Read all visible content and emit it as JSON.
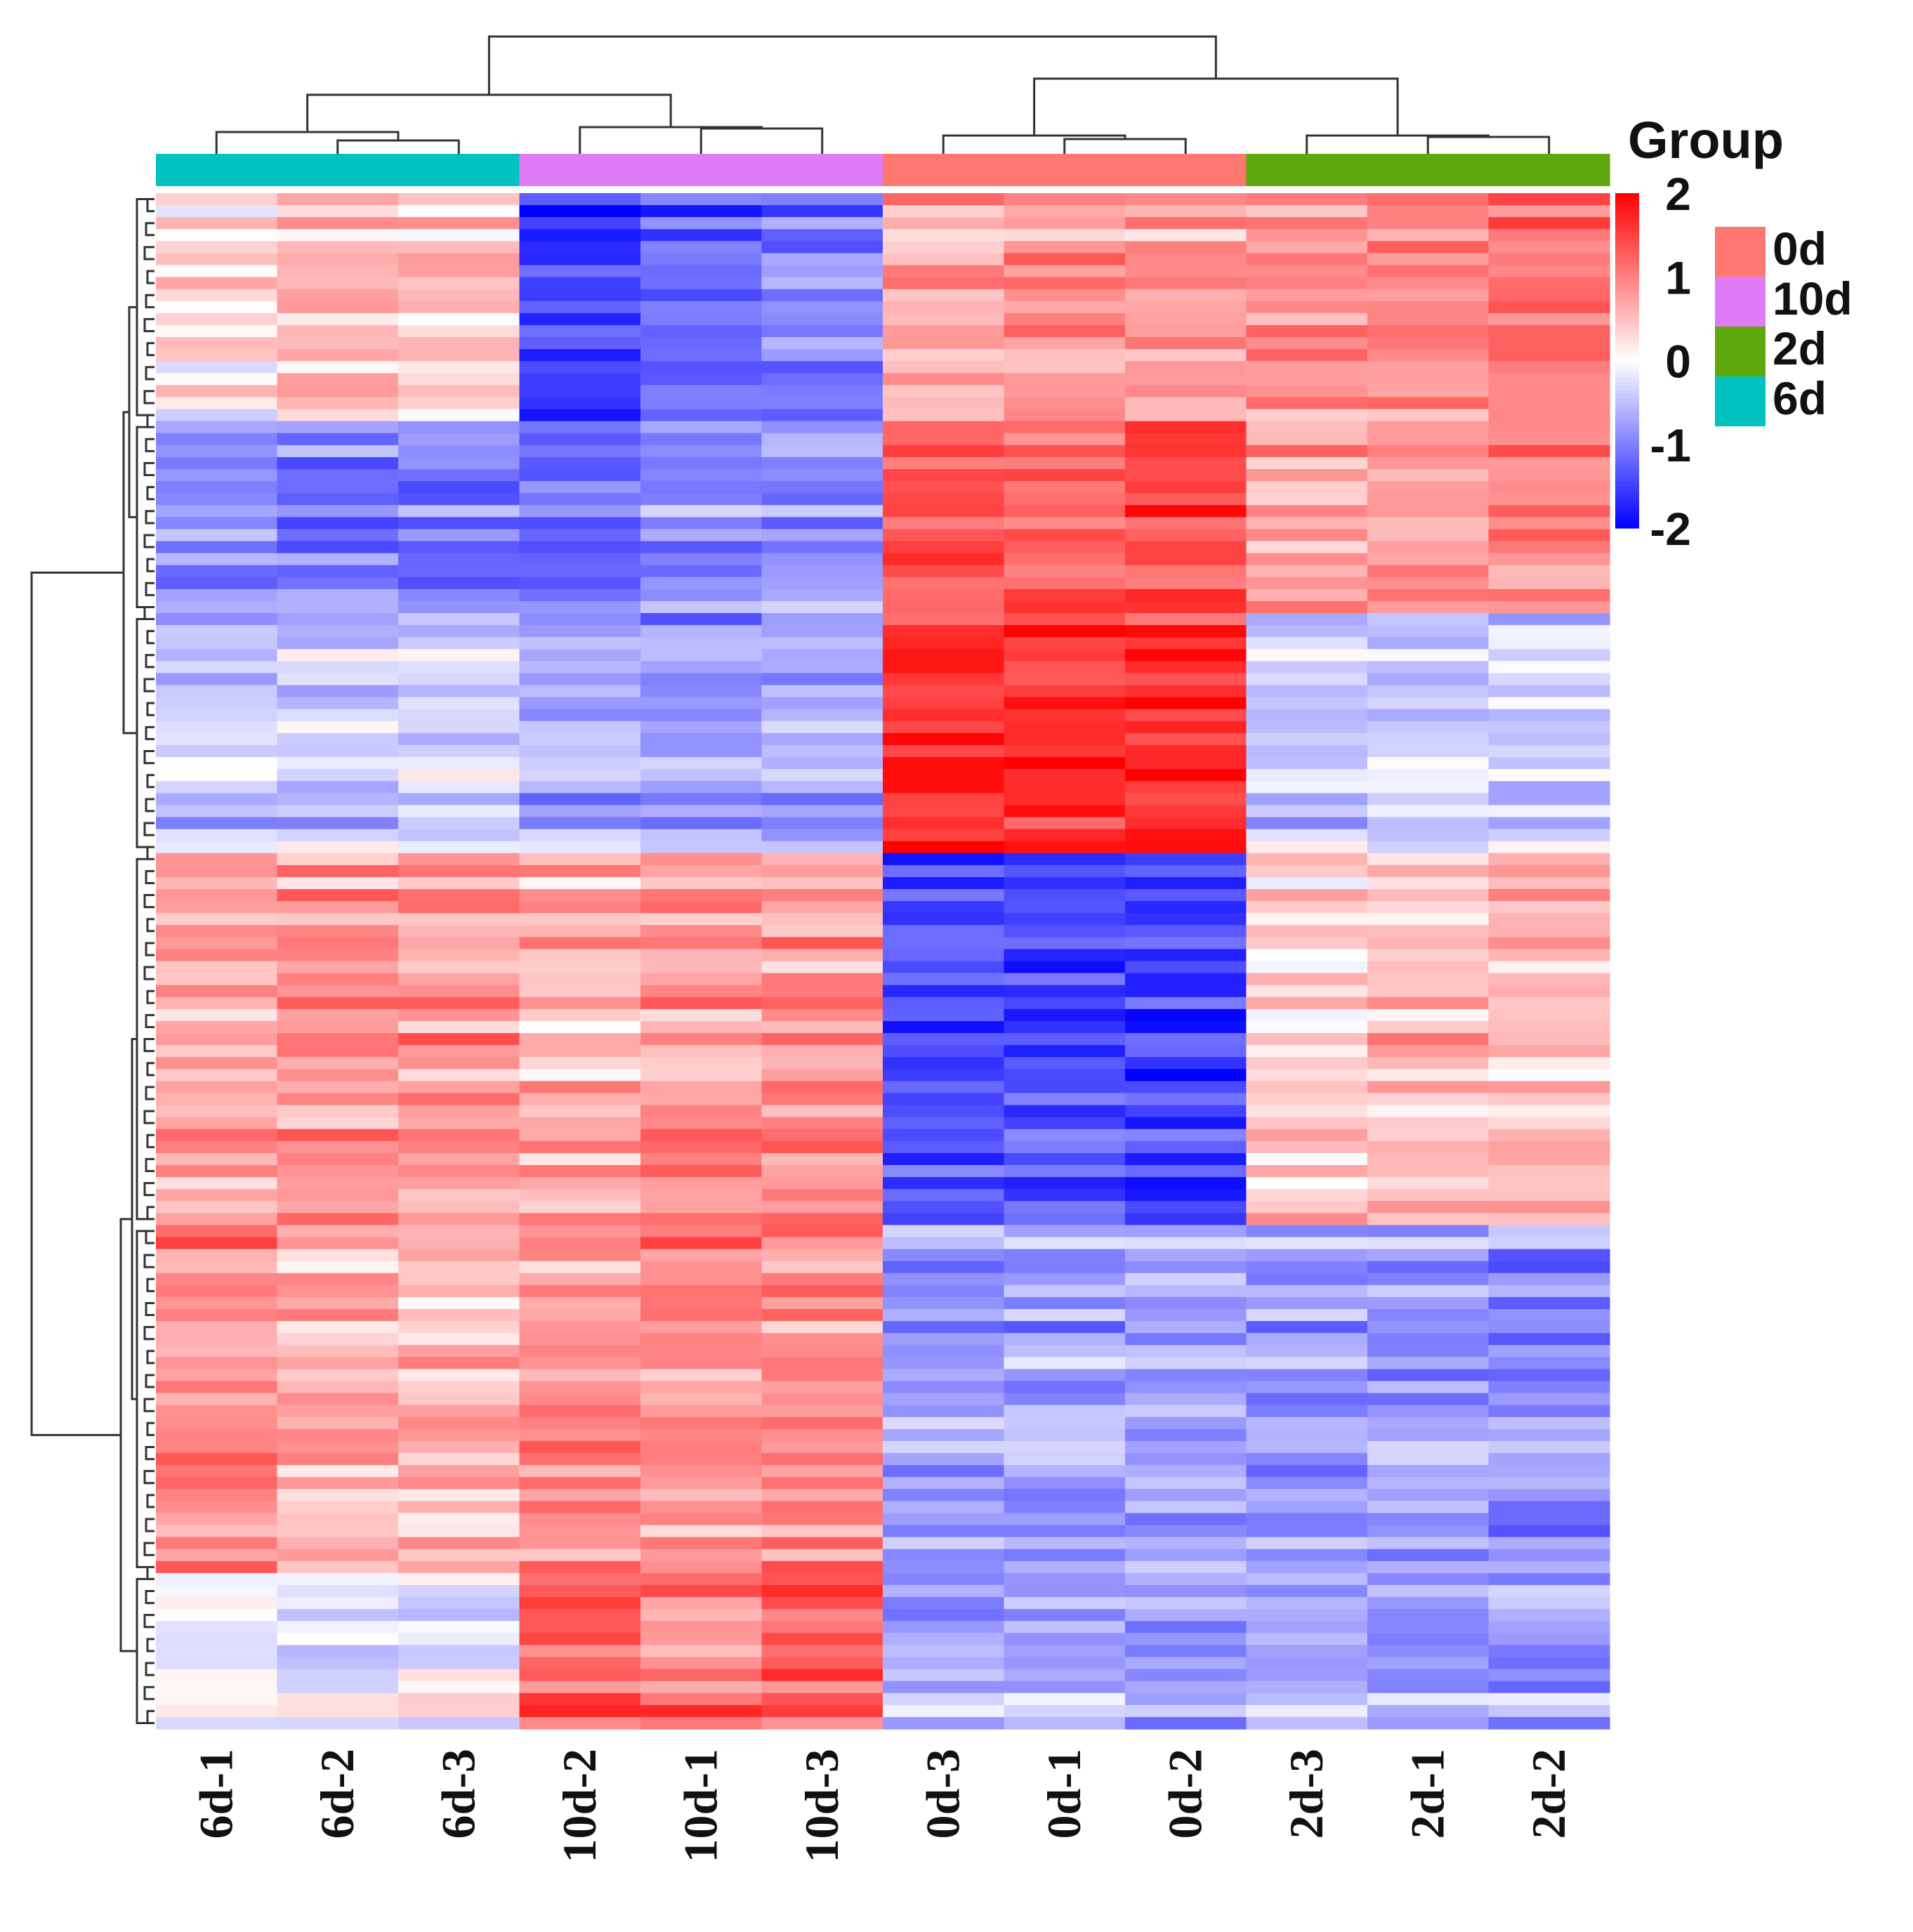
{
  "chart_data": {
    "type": "heatmap",
    "title": "",
    "xlabel": "",
    "ylabel": "",
    "columns": [
      "6d-1",
      "6d-2",
      "6d-3",
      "10d-2",
      "10d-1",
      "10d-3",
      "0d-3",
      "0d-1",
      "0d-2",
      "2d-3",
      "2d-1",
      "2d-2"
    ],
    "column_groups": [
      "6d",
      "6d",
      "6d",
      "10d",
      "10d",
      "10d",
      "0d",
      "0d",
      "0d",
      "2d",
      "2d",
      "2d"
    ],
    "row_count": 128,
    "color_scale": {
      "min": -2,
      "max": 2,
      "low_color": "#0000ff",
      "mid_color": "#ffffff",
      "high_color": "#ff0000",
      "ticks": [
        "2",
        "1",
        "0",
        "-1",
        "-2"
      ]
    },
    "group_legend": {
      "title": "Group",
      "items": [
        {
          "label": "0d",
          "color": "#ff7771"
        },
        {
          "label": "10d",
          "color": "#df7cf5"
        },
        {
          "label": "2d",
          "color": "#5ea80d"
        },
        {
          "label": "6d",
          "color": "#00c2c1"
        }
      ]
    },
    "row_blocks": [
      {
        "rows": [
          0,
          19
        ],
        "values": [
          0.1,
          0.4,
          0.3,
          -1.6,
          -1.3,
          -1.1,
          0.6,
          0.8,
          0.7,
          0.9,
          0.9,
          1.0
        ]
      },
      {
        "rows": [
          19,
          35
        ],
        "values": [
          -0.8,
          -0.9,
          -0.9,
          -0.9,
          -0.8,
          -0.7,
          1.4,
          1.3,
          1.4,
          0.8,
          0.8,
          0.9
        ]
      },
      {
        "rows": [
          35,
          55
        ],
        "values": [
          -0.5,
          -0.4,
          -0.4,
          -0.7,
          -0.8,
          -0.7,
          1.6,
          1.6,
          1.6,
          -0.4,
          -0.4,
          -0.4
        ]
      },
      {
        "rows": [
          55,
          86
        ],
        "values": [
          0.7,
          0.8,
          0.8,
          0.6,
          0.8,
          0.8,
          -1.4,
          -1.4,
          -1.5,
          0.4,
          0.5,
          0.5
        ]
      },
      {
        "rows": [
          86,
          115
        ],
        "values": [
          0.9,
          0.6,
          0.5,
          0.8,
          0.9,
          0.9,
          -0.8,
          -0.8,
          -0.7,
          -0.8,
          -0.8,
          -0.9
        ]
      },
      {
        "rows": [
          115,
          128
        ],
        "values": [
          0.0,
          -0.1,
          0.0,
          1.3,
          1.1,
          1.4,
          -0.6,
          -0.6,
          -0.6,
          -0.6,
          -0.6,
          -0.6
        ]
      }
    ]
  }
}
